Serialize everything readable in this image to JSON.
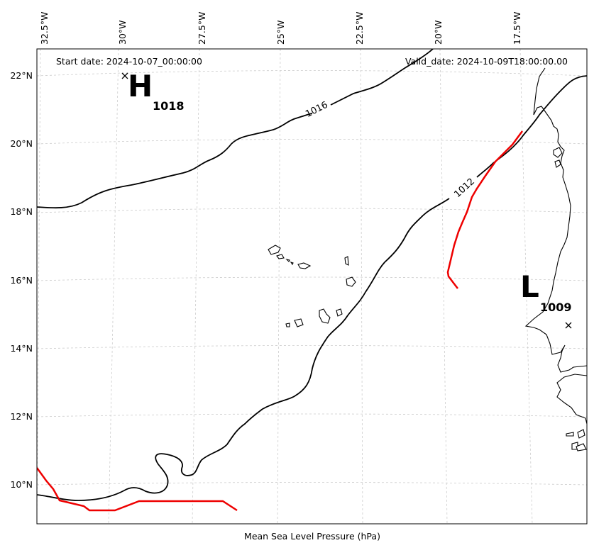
{
  "map": {
    "start_date": "Start date: 2024-10-07_00:00:00",
    "valid_date": "Valid_date: 2024-10-09T18:00:00.00",
    "xlabel": "Mean Sea Level Pressure (hPa)",
    "lon_ticks": [
      "32.5°W",
      "30°W",
      "27.5°W",
      "25°W",
      "22.5°W",
      "20°W",
      "17.5°W"
    ],
    "lat_ticks": [
      "22°N",
      "20°N",
      "18°N",
      "16°N",
      "14°N",
      "12°N",
      "10°N"
    ],
    "isobar_labels": [
      "1016",
      "1012"
    ],
    "pressure_centers": [
      {
        "type": "high",
        "letter": "H",
        "value": "1018"
      },
      {
        "type": "low",
        "letter": "L",
        "value": "1009"
      }
    ],
    "colors": {
      "isobar": "#000000",
      "coastline": "#000000",
      "track": "#ee0000",
      "grid": "#cccccc"
    }
  }
}
